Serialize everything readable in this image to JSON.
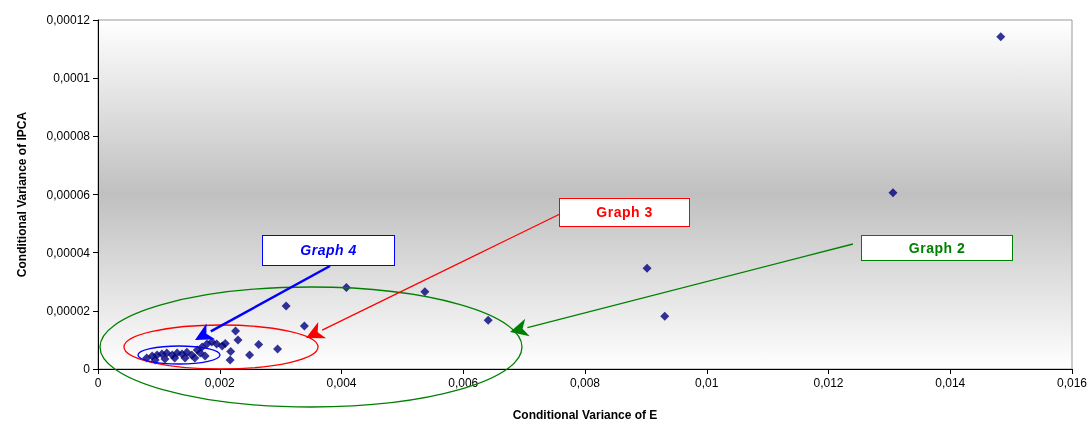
{
  "chart_data": {
    "type": "scatter",
    "xlabel": "Conditional Variance of E",
    "ylabel": "Conditional Variance of IPCA",
    "series": [
      {
        "color": "#000080",
        "x": [
          0.01483,
          0.01306,
          0.00902,
          0.00931,
          0.00408,
          0.00537,
          0.00641,
          0.00309,
          0.00339,
          0.00264,
          0.00295,
          0.00249,
          0.00226,
          0.0023,
          0.00218,
          0.00217,
          0.00209,
          0.0008,
          0.00089,
          0.00097,
          0.00105,
          0.00113,
          0.00122,
          0.0013,
          0.00138,
          0.00146,
          0.00154,
          0.00163,
          0.00171,
          0.00179,
          0.00187,
          0.00195,
          0.00204,
          0.00094,
          0.0011,
          0.00126,
          0.00143,
          0.00159,
          0.00176,
          0.00168
        ],
        "values": [
          0.0001142,
          6.06e-05,
          3.46e-05,
          1.81e-05,
          2.8e-05,
          2.66e-05,
          1.68e-05,
          2.17e-05,
          1.48e-05,
          8.4e-06,
          6.9e-06,
          4.8e-06,
          1.31e-05,
          1e-05,
          6e-06,
          3.1e-06,
          8.8e-06,
          3.8e-06,
          4.5e-06,
          4.8e-06,
          5.2e-06,
          5.5e-06,
          4.8e-06,
          5.5e-06,
          5.2e-06,
          5.8e-06,
          4.8e-06,
          6.5e-06,
          7.6e-06,
          8.6e-06,
          9.3e-06,
          8.6e-06,
          7.9e-06,
          3.1e-06,
          3.4e-06,
          3.8e-06,
          3.8e-06,
          3.8e-06,
          4.5e-06,
          5.5e-06
        ]
      }
    ],
    "xlim": [
      0,
      0.016
    ],
    "xticks": [
      0,
      {
        "value": 0.002,
        "label": "0,002"
      },
      {
        "value": 0.004,
        "label": "0,004"
      },
      {
        "value": 0.006,
        "label": "0,006"
      },
      {
        "value": 0.008,
        "label": "0,008"
      },
      {
        "value": 0.01,
        "label": "0,01"
      },
      {
        "value": 0.012,
        "label": "0,012"
      },
      {
        "value": 0.014,
        "label": "0,014"
      },
      {
        "value": 0.016,
        "label": "0,016"
      }
    ],
    "ylim": [
      0,
      0.00012
    ],
    "yticks": [
      0,
      {
        "value": 2e-05,
        "label": "0,00002"
      },
      {
        "value": 4e-05,
        "label": "0,00004"
      },
      {
        "value": 6e-05,
        "label": "0,00006"
      },
      {
        "value": 8e-05,
        "label": "0,00008"
      },
      {
        "value": 0.0001,
        "label": "0,0001"
      },
      {
        "value": 0.00012,
        "label": "0,00012"
      }
    ],
    "annotations": [
      "Graph 2",
      "Graph 3",
      "Graph 4"
    ],
    "grid": false,
    "marker": "diamond"
  }
}
